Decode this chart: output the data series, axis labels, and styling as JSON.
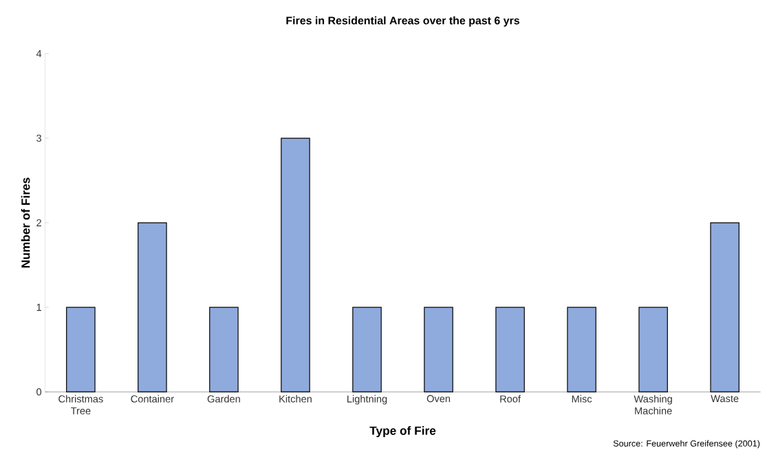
{
  "chart_data": {
    "type": "bar",
    "title": "Fires in Residential Areas over the past 6 yrs",
    "xlabel": "Type of Fire",
    "ylabel": "Number of Fires",
    "categories": [
      "Christmas Tree",
      "Container",
      "Garden",
      "Kitchen",
      "Lightning",
      "Oven",
      "Roof",
      "Misc",
      "Washing Machine",
      "Waste"
    ],
    "values": [
      1,
      2,
      1,
      3,
      1,
      1,
      1,
      1,
      1,
      2
    ],
    "color": "#8faadc",
    "ylim": [
      0,
      4
    ],
    "yticks": [
      0,
      1,
      2,
      3,
      4
    ],
    "grid": false,
    "annotations": [
      "Source: Feuerwehr Greifensee (2001)"
    ]
  }
}
